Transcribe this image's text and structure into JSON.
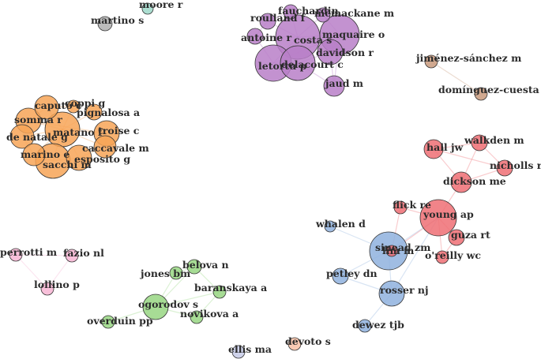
{
  "palette": {
    "purple": "#b87fc8",
    "orange": "#f7a457",
    "red": "#ee6e74",
    "blue": "#8fb2de",
    "green": "#98d683",
    "pink": "#f7b5d3",
    "brown": "#c99a7c",
    "grey": "#b0b0b0",
    "teal": "#9ed8c9",
    "salmon": "#f8c1a6",
    "lavender": "#c7cbe8"
  },
  "nodes": [
    {
      "id": "martino",
      "label": "martino s",
      "color": "grey"
    },
    {
      "id": "moore",
      "label": "moore r",
      "color": "teal"
    },
    {
      "id": "fauchardin",
      "label": "fauchardin",
      "color": "purple"
    },
    {
      "id": "mcmackane",
      "label": "mcmackane m",
      "color": "purple"
    },
    {
      "id": "roulland",
      "label": "roulland f",
      "color": "purple"
    },
    {
      "id": "costa",
      "label": "costa s",
      "color": "purple"
    },
    {
      "id": "maquaire",
      "label": "maquaire o",
      "color": "purple"
    },
    {
      "id": "antoine",
      "label": "antoine r",
      "color": "purple"
    },
    {
      "id": "davidson",
      "label": "davidson r",
      "color": "purple"
    },
    {
      "id": "letortu",
      "label": "letortu p",
      "color": "purple"
    },
    {
      "id": "delacourt",
      "label": "delacourt c",
      "color": "purple"
    },
    {
      "id": "jaud",
      "label": "jaud m",
      "color": "purple"
    },
    {
      "id": "jimenez",
      "label": "jiménez-sánchez m",
      "color": "brown"
    },
    {
      "id": "dominguez",
      "label": "domínguez-cuesta mj",
      "color": "brown"
    },
    {
      "id": "caputo",
      "label": "caputo c",
      "color": "orange"
    },
    {
      "id": "coppi",
      "label": "coppi g",
      "color": "orange"
    },
    {
      "id": "pignalosa",
      "label": "pignalosa a",
      "color": "orange"
    },
    {
      "id": "somma",
      "label": "somma r",
      "color": "orange"
    },
    {
      "id": "matano",
      "label": "matano f",
      "color": "orange"
    },
    {
      "id": "troise",
      "label": "troise c",
      "color": "orange"
    },
    {
      "id": "denatale",
      "label": "de natale g",
      "color": "orange"
    },
    {
      "id": "caccavale",
      "label": "caccavale m",
      "color": "orange"
    },
    {
      "id": "marino",
      "label": "marino e",
      "color": "orange"
    },
    {
      "id": "esposito",
      "label": "esposito g",
      "color": "orange"
    },
    {
      "id": "sacchi",
      "label": "sacchi m",
      "color": "orange"
    },
    {
      "id": "hall",
      "label": "hall jw",
      "color": "red"
    },
    {
      "id": "walkden",
      "label": "walkden m",
      "color": "red"
    },
    {
      "id": "nicholls",
      "label": "nicholls rj",
      "color": "red"
    },
    {
      "id": "dickson",
      "label": "dickson me",
      "color": "red"
    },
    {
      "id": "flick",
      "label": "flick re",
      "color": "red"
    },
    {
      "id": "young",
      "label": "young ap",
      "color": "red"
    },
    {
      "id": "guza",
      "label": "guza rt",
      "color": "red"
    },
    {
      "id": "oreilly",
      "label": "o'reilly wc",
      "color": "red"
    },
    {
      "id": "lim",
      "label": "lim m",
      "color": "red"
    },
    {
      "id": "whalen",
      "label": "whalen d",
      "color": "blue"
    },
    {
      "id": "sinead",
      "label": "sinead zm",
      "color": "blue"
    },
    {
      "id": "petley",
      "label": "petley dn",
      "color": "blue"
    },
    {
      "id": "rosser",
      "label": "rosser nj",
      "color": "blue"
    },
    {
      "id": "dewez",
      "label": "dewez tjb",
      "color": "blue"
    },
    {
      "id": "perrotti",
      "label": "perrotti m",
      "color": "pink"
    },
    {
      "id": "fazio",
      "label": "fazio nl",
      "color": "pink"
    },
    {
      "id": "lollino",
      "label": "lollino p",
      "color": "pink"
    },
    {
      "id": "jones",
      "label": "jones bm",
      "color": "green"
    },
    {
      "id": "belova",
      "label": "belova n",
      "color": "green"
    },
    {
      "id": "baranskaya",
      "label": "baranskaya a",
      "color": "green"
    },
    {
      "id": "ogorodov",
      "label": "ogorodov s",
      "color": "green"
    },
    {
      "id": "novikova",
      "label": "novikova a",
      "color": "green"
    },
    {
      "id": "overduin",
      "label": "overduin pp",
      "color": "green"
    },
    {
      "id": "devoto",
      "label": "devoto s",
      "color": "salmon"
    },
    {
      "id": "ellis",
      "label": "ellis ma",
      "color": "lavender"
    }
  ],
  "edges": [
    [
      "fauchardin",
      "mcmackane"
    ],
    [
      "fauchardin",
      "costa"
    ],
    [
      "fauchardin",
      "roulland"
    ],
    [
      "mcmackane",
      "costa"
    ],
    [
      "mcmackane",
      "maquaire"
    ],
    [
      "roulland",
      "costa"
    ],
    [
      "roulland",
      "antoine"
    ],
    [
      "costa",
      "maquaire"
    ],
    [
      "costa",
      "antoine"
    ],
    [
      "costa",
      "davidson"
    ],
    [
      "costa",
      "letortu"
    ],
    [
      "costa",
      "delacourt"
    ],
    [
      "maquaire",
      "davidson"
    ],
    [
      "maquaire",
      "jaud"
    ],
    [
      "antoine",
      "letortu"
    ],
    [
      "letortu",
      "delacourt"
    ],
    [
      "delacourt",
      "davidson"
    ],
    [
      "delacourt",
      "jaud"
    ],
    [
      "davidson",
      "jaud"
    ],
    [
      "letortu",
      "maquaire"
    ],
    [
      "jimenez",
      "dominguez"
    ],
    [
      "caputo",
      "coppi"
    ],
    [
      "caputo",
      "somma"
    ],
    [
      "caputo",
      "matano"
    ],
    [
      "coppi",
      "matano"
    ],
    [
      "pignalosa",
      "matano"
    ],
    [
      "somma",
      "matano"
    ],
    [
      "somma",
      "denatale"
    ],
    [
      "matano",
      "troise"
    ],
    [
      "matano",
      "denatale"
    ],
    [
      "matano",
      "caccavale"
    ],
    [
      "matano",
      "marino"
    ],
    [
      "matano",
      "esposito"
    ],
    [
      "matano",
      "sacchi"
    ],
    [
      "troise",
      "caccavale"
    ],
    [
      "denatale",
      "marino"
    ],
    [
      "marino",
      "sacchi"
    ],
    [
      "sacchi",
      "esposito"
    ],
    [
      "esposito",
      "caccavale"
    ],
    [
      "somma",
      "troise"
    ],
    [
      "hall",
      "walkden"
    ],
    [
      "hall",
      "dickson"
    ],
    [
      "walkden",
      "nicholls"
    ],
    [
      "walkden",
      "dickson"
    ],
    [
      "nicholls",
      "dickson"
    ],
    [
      "dickson",
      "young"
    ],
    [
      "flick",
      "young"
    ],
    [
      "young",
      "guza"
    ],
    [
      "young",
      "oreilly"
    ],
    [
      "young",
      "lim"
    ],
    [
      "flick",
      "lim"
    ],
    [
      "guza",
      "oreilly"
    ],
    [
      "hall",
      "nicholls"
    ],
    [
      "whalen",
      "sinead"
    ],
    [
      "sinead",
      "petley"
    ],
    [
      "sinead",
      "rosser"
    ],
    [
      "rosser",
      "dewez"
    ],
    [
      "petley",
      "rosser"
    ],
    [
      "sinead",
      "lim"
    ],
    [
      "sinead",
      "young"
    ],
    [
      "rosser",
      "young"
    ],
    [
      "perrotti",
      "fazio"
    ],
    [
      "perrotti",
      "lollino"
    ],
    [
      "fazio",
      "lollino"
    ],
    [
      "jones",
      "ogorodov"
    ],
    [
      "belova",
      "ogorodov"
    ],
    [
      "baranskaya",
      "ogorodov"
    ],
    [
      "ogorodov",
      "novikova"
    ],
    [
      "overduin",
      "ogorodov"
    ],
    [
      "belova",
      "baranskaya"
    ],
    [
      "jones",
      "belova"
    ],
    [
      "novikova",
      "baranskaya"
    ]
  ]
}
